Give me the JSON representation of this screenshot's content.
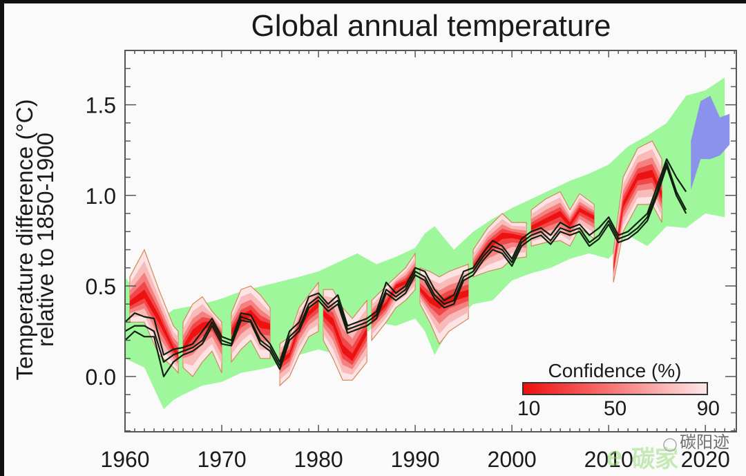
{
  "chart_data": {
    "type": "area",
    "title": "Global annual temperature",
    "xlabel": "",
    "ylabel": [
      "Temperature difference (°C)",
      "relative to 1850-1900"
    ],
    "xlim": [
      1960,
      2023.2
    ],
    "ylim": [
      -0.305,
      1.8
    ],
    "xticks": [
      1960,
      1970,
      1980,
      1990,
      2000,
      2010,
      2020
    ],
    "xtick_labels": [
      "1960",
      "1970",
      "1980",
      "1990",
      "2000",
      "2010",
      "2020"
    ],
    "yticks": [
      0.0,
      0.5,
      1.0,
      1.5
    ],
    "ytick_labels": [
      "0.0",
      "0.5",
      "1.0",
      "1.5"
    ],
    "grid": false,
    "colors": {
      "model_range": "#9ef79a",
      "projection": "#8a92ec",
      "forecast_core": "#ee1111",
      "forecast_edge": "#fde4e4",
      "forecast_outline": "#d4865a",
      "observations": "#0f1f0f"
    },
    "series": [
      {
        "name": "Model range (green envelope)",
        "type": "band",
        "x": [
          1960,
          1962,
          1964,
          1965,
          1966,
          1968,
          1970,
          1972,
          1975,
          1978,
          1980,
          1982,
          1984,
          1986,
          1988,
          1990,
          1991,
          1992,
          1994,
          1996,
          1998,
          2000,
          2002,
          2004,
          2006,
          2008,
          2010,
          2012,
          2014,
          2016,
          2018,
          2020,
          2022
        ],
        "upper": [
          0.55,
          0.4,
          0.33,
          0.37,
          0.38,
          0.4,
          0.43,
          0.47,
          0.51,
          0.55,
          0.58,
          0.63,
          0.68,
          0.62,
          0.66,
          0.71,
          0.79,
          0.83,
          0.7,
          0.8,
          0.87,
          0.93,
          0.98,
          1.03,
          1.08,
          1.12,
          1.17,
          1.27,
          1.33,
          1.4,
          1.55,
          1.58,
          1.65
        ],
        "lower": [
          0.1,
          0.05,
          -0.18,
          -0.13,
          -0.1,
          -0.05,
          -0.03,
          0.02,
          0.05,
          0.12,
          0.15,
          0.12,
          0.18,
          0.3,
          0.28,
          0.32,
          0.25,
          0.12,
          0.3,
          0.4,
          0.42,
          0.53,
          0.57,
          0.6,
          0.65,
          0.68,
          0.65,
          0.78,
          0.72,
          0.83,
          0.82,
          0.9,
          0.88
        ]
      },
      {
        "name": "Projection range (blue)",
        "type": "band",
        "x": [
          2018.5,
          2019.5,
          2020.5,
          2021.5,
          2022.5
        ],
        "upper": [
          1.3,
          1.52,
          1.55,
          1.43,
          1.45
        ],
        "lower": [
          1.03,
          1.2,
          1.2,
          1.22,
          1.28
        ]
      },
      {
        "name": "Retrospective forecasts (red confidence plumes)",
        "type": "plume",
        "segments": [
          {
            "x": [
              1960.5,
              1962,
              1963.5,
              1965,
              1965.5
            ],
            "center": [
              0.4,
              0.45,
              0.32,
              0.15,
              0.12
            ],
            "upper": [
              0.55,
              0.7,
              0.48,
              0.28,
              0.25
            ],
            "lower": [
              0.3,
              0.3,
              0.12,
              0.05,
              0.02
            ]
          },
          {
            "x": [
              1966,
              1967,
              1968,
              1969,
              1970
            ],
            "center": [
              0.15,
              0.24,
              0.28,
              0.3,
              0.22
            ],
            "upper": [
              0.3,
              0.4,
              0.44,
              0.36,
              0.3
            ],
            "lower": [
              0.05,
              0.0,
              0.08,
              0.14,
              0.02
            ]
          },
          {
            "x": [
              1971,
              1972,
              1973,
              1974,
              1975
            ],
            "center": [
              0.25,
              0.32,
              0.35,
              0.29,
              0.28
            ],
            "upper": [
              0.35,
              0.48,
              0.5,
              0.45,
              0.38
            ],
            "lower": [
              0.08,
              0.15,
              0.2,
              0.1,
              0.1
            ]
          },
          {
            "x": [
              1976,
              1977,
              1978,
              1979,
              1980
            ],
            "center": [
              0.08,
              0.12,
              0.28,
              0.35,
              0.4
            ],
            "upper": [
              0.18,
              0.22,
              0.38,
              0.45,
              0.52
            ],
            "lower": [
              -0.05,
              0.0,
              0.12,
              0.22,
              0.25
            ]
          },
          {
            "x": [
              1980.5,
              1981.5,
              1982.5,
              1983.5,
              1985
            ],
            "center": [
              0.35,
              0.3,
              0.15,
              0.1,
              0.25
            ],
            "upper": [
              0.48,
              0.48,
              0.38,
              0.32,
              0.42
            ],
            "lower": [
              0.2,
              0.1,
              -0.02,
              -0.02,
              0.08
            ]
          },
          {
            "x": [
              1985.5,
              1987,
              1988,
              1989,
              1990
            ],
            "center": [
              0.32,
              0.4,
              0.5,
              0.52,
              0.58
            ],
            "upper": [
              0.42,
              0.5,
              0.55,
              0.6,
              0.68
            ],
            "lower": [
              0.2,
              0.3,
              0.38,
              0.42,
              0.48
            ]
          },
          {
            "x": [
              1990.5,
              1991.5,
              1992.5,
              1993.5,
              1995.5
            ],
            "center": [
              0.48,
              0.42,
              0.4,
              0.43,
              0.46
            ],
            "upper": [
              0.6,
              0.58,
              0.55,
              0.58,
              0.62
            ],
            "lower": [
              0.4,
              0.3,
              0.18,
              0.25,
              0.32
            ]
          },
          {
            "x": [
              1996,
              1997.5,
              1999,
              2000,
              2001.5
            ],
            "center": [
              0.6,
              0.72,
              0.78,
              0.78,
              0.76
            ],
            "upper": [
              0.7,
              0.82,
              0.9,
              0.85,
              0.85
            ],
            "lower": [
              0.55,
              0.58,
              0.6,
              0.65,
              0.66
            ]
          },
          {
            "x": [
              2002,
              2003.5,
              2005,
              2006,
              2007,
              2008.5
            ],
            "center": [
              0.82,
              0.86,
              0.9,
              0.84,
              0.92,
              0.88
            ],
            "upper": [
              0.92,
              0.98,
              1.02,
              0.92,
              1.01,
              0.95
            ],
            "lower": [
              0.72,
              0.74,
              0.75,
              0.72,
              0.82,
              0.76
            ]
          },
          {
            "x": [
              2010.5,
              2011.5,
              2013,
              2014.5,
              2015.5
            ],
            "center": [
              0.6,
              0.95,
              1.1,
              1.12,
              1.0
            ],
            "upper": [
              0.7,
              1.1,
              1.26,
              1.3,
              1.2
            ],
            "lower": [
              0.52,
              0.8,
              0.95,
              0.95,
              0.85
            ]
          }
        ]
      },
      {
        "name": "Observations (black lines)",
        "type": "line",
        "x": [
          1960,
          1961,
          1962,
          1963,
          1964,
          1965,
          1966,
          1967,
          1968,
          1969,
          1970,
          1971,
          1972,
          1973,
          1974,
          1975,
          1976,
          1977,
          1978,
          1979,
          1980,
          1981,
          1982,
          1983,
          1984,
          1985,
          1986,
          1987,
          1988,
          1989,
          1990,
          1991,
          1992,
          1993,
          1994,
          1995,
          1996,
          1997,
          1998,
          1999,
          2000,
          2001,
          2002,
          2003,
          2004,
          2005,
          2006,
          2007,
          2008,
          2009,
          2010,
          2011,
          2012,
          2013,
          2014,
          2015,
          2016,
          2017,
          2018
        ],
        "lines": [
          [
            0.3,
            0.35,
            0.33,
            0.32,
            0.12,
            0.15,
            0.16,
            0.18,
            0.25,
            0.32,
            0.22,
            0.2,
            0.35,
            0.34,
            0.24,
            0.18,
            0.08,
            0.25,
            0.3,
            0.44,
            0.46,
            0.4,
            0.45,
            0.28,
            0.3,
            0.32,
            0.36,
            0.52,
            0.46,
            0.5,
            0.6,
            0.58,
            0.48,
            0.42,
            0.45,
            0.58,
            0.6,
            0.68,
            0.75,
            0.72,
            0.65,
            0.76,
            0.8,
            0.82,
            0.78,
            0.85,
            0.82,
            0.84,
            0.78,
            0.82,
            0.88,
            0.78,
            0.8,
            0.85,
            0.9,
            1.05,
            1.2,
            1.1,
            1.02
          ],
          [
            0.25,
            0.28,
            0.28,
            0.25,
            0.08,
            0.12,
            0.14,
            0.16,
            0.2,
            0.3,
            0.2,
            0.18,
            0.33,
            0.31,
            0.2,
            0.16,
            0.06,
            0.22,
            0.27,
            0.4,
            0.44,
            0.38,
            0.42,
            0.26,
            0.28,
            0.3,
            0.34,
            0.48,
            0.44,
            0.48,
            0.58,
            0.55,
            0.45,
            0.4,
            0.42,
            0.55,
            0.58,
            0.66,
            0.72,
            0.7,
            0.63,
            0.74,
            0.78,
            0.8,
            0.75,
            0.82,
            0.8,
            0.82,
            0.74,
            0.78,
            0.86,
            0.76,
            0.78,
            0.82,
            0.88,
            1.02,
            1.18,
            1.02,
            0.92
          ],
          [
            0.2,
            0.25,
            0.22,
            0.22,
            0.0,
            0.08,
            0.12,
            0.14,
            0.18,
            0.28,
            0.18,
            0.17,
            0.31,
            0.3,
            0.18,
            0.14,
            0.04,
            0.2,
            0.25,
            0.38,
            0.42,
            0.36,
            0.4,
            0.24,
            0.26,
            0.28,
            0.32,
            0.46,
            0.42,
            0.46,
            0.56,
            0.53,
            0.43,
            0.38,
            0.4,
            0.53,
            0.56,
            0.64,
            0.7,
            0.68,
            0.61,
            0.72,
            0.76,
            0.78,
            0.73,
            0.8,
            0.78,
            0.8,
            0.72,
            0.76,
            0.84,
            0.74,
            0.76,
            0.8,
            0.86,
            1.0,
            1.16,
            1.0,
            0.9
          ]
        ]
      }
    ],
    "legend": {
      "title": "Confidence (%)",
      "tick_labels": [
        "10",
        "50",
        "90"
      ],
      "tick_values": [
        10,
        50,
        90
      ],
      "range": [
        10,
        90
      ],
      "placement": "bottom-right"
    }
  },
  "watermark": {
    "text": "碳阳迹",
    "brand": "碳家",
    "domain_hint": "tanjiayi .com"
  }
}
